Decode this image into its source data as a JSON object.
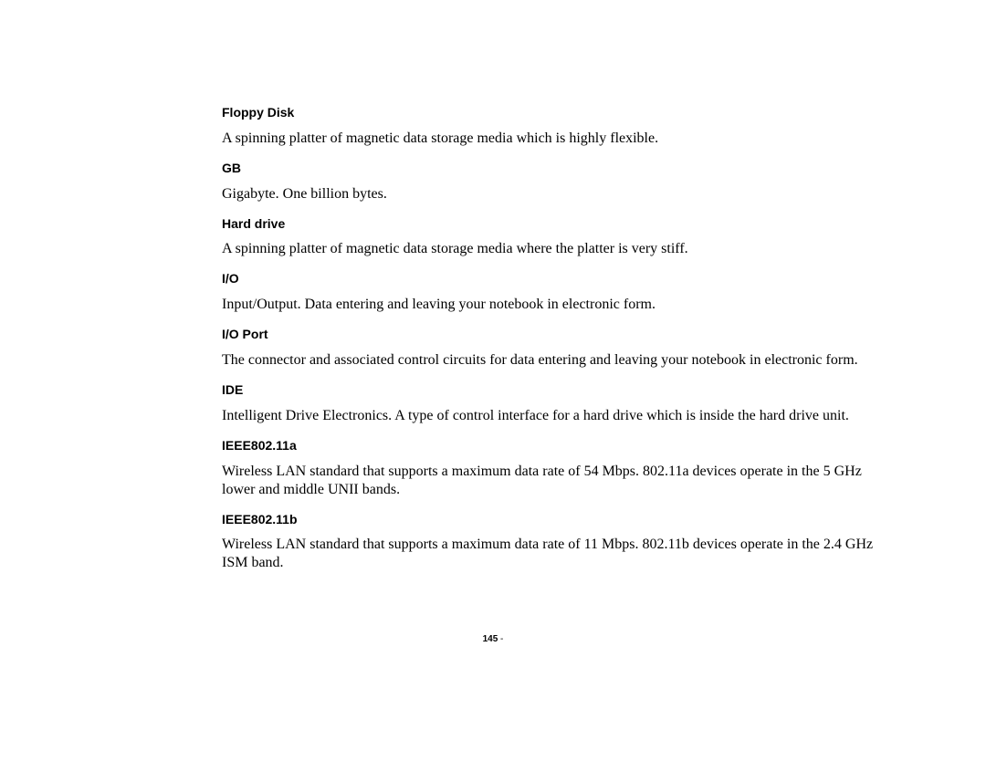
{
  "entries": [
    {
      "term": "Floppy Disk",
      "def": "A spinning platter of magnetic data storage media which is highly flexible."
    },
    {
      "term": "GB",
      "def": "Gigabyte. One billion bytes."
    },
    {
      "term": "Hard drive",
      "def": "A spinning platter of magnetic data storage media where the platter is very stiff."
    },
    {
      "term": "I/O",
      "def": "Input/Output. Data entering and leaving your notebook in electronic form."
    },
    {
      "term": "I/O Port",
      "def": "The connector and associated control circuits for data entering and leaving your notebook in electronic form."
    },
    {
      "term": "IDE",
      "def": "Intelligent Drive Electronics. A type of control interface for a hard drive which is inside the hard drive unit."
    },
    {
      "term": "IEEE802.11a",
      "def": "Wireless LAN standard that supports a maximum data rate of 54 Mbps. 802.11a devices operate in the 5 GHz lower and middle UNII bands."
    },
    {
      "term": "IEEE802.11b",
      "def": "Wireless LAN standard that supports a maximum data rate of 11 Mbps. 802.11b devices operate in the 2.4 GHz ISM band."
    }
  ],
  "page_number": "145",
  "page_number_suffix": " -"
}
